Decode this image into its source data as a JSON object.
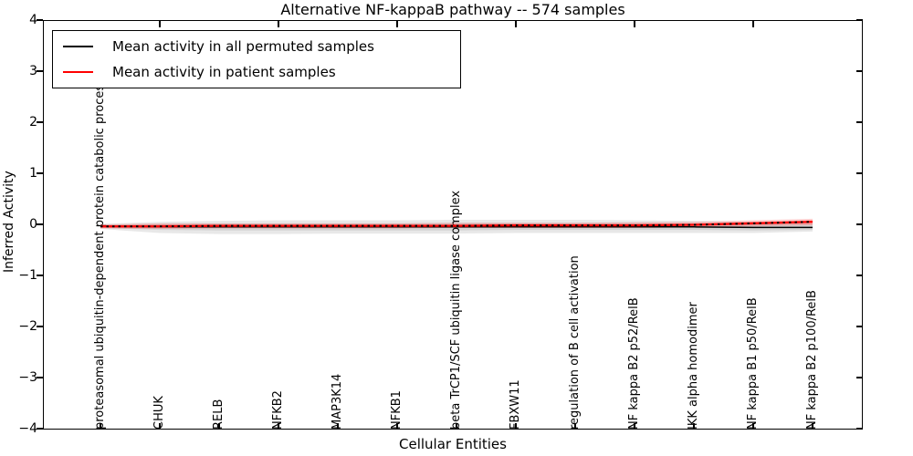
{
  "title": "Alternative NF-kappaB pathway -- 574 samples",
  "axes": {
    "ylabel": "Inferred Activity",
    "xlabel": "Cellular Entities",
    "yticks": [
      "4",
      "3",
      "2",
      "1",
      "0",
      "−1",
      "−2",
      "−3",
      "−4"
    ]
  },
  "legend": {
    "entries": [
      {
        "label": "Mean activity in all permuted samples",
        "color": "#000000"
      },
      {
        "label": "Mean activity in patient samples",
        "color": "#ff0000"
      }
    ]
  },
  "chart_data": {
    "type": "line",
    "title": "Alternative NF-kappaB pathway -- 574 samples",
    "xlabel": "Cellular Entities",
    "ylabel": "Inferred Activity",
    "ylim": [
      -4,
      4
    ],
    "grid": false,
    "legend_position": "upper left",
    "categories": [
      "proteasomal ubiquitin-dependent protein catabolic process",
      "CHUK",
      "RELB",
      "NFKB2",
      "MAP3K14",
      "NFKB1",
      "beta TrCP1/SCF ubiquitin ligase complex",
      "FBXW11",
      "regulation of B cell activation",
      "NF kappa B2 p52/RelB",
      "IKK alpha homodimer",
      "NF kappa B1 p50/RelB",
      "NF kappa B2 p100/RelB"
    ],
    "series": [
      {
        "name": "Mean activity in all permuted samples",
        "color": "#000000",
        "width": 1.5,
        "values": [
          -0.04,
          -0.05,
          -0.05,
          -0.05,
          -0.05,
          -0.05,
          -0.05,
          -0.05,
          -0.05,
          -0.05,
          -0.05,
          -0.06,
          -0.06
        ]
      },
      {
        "name": "Mean activity in patient samples",
        "color": "#ff0000",
        "width": 2.2,
        "values": [
          -0.04,
          -0.04,
          -0.03,
          -0.03,
          -0.03,
          -0.03,
          -0.03,
          -0.02,
          -0.02,
          -0.02,
          -0.01,
          0.02,
          0.05
        ]
      }
    ],
    "overlays": [
      {
        "name": "patient-line-dotted-overlay",
        "on_series": 1,
        "color": "#000000",
        "dash": "2.5 4",
        "width": 2
      }
    ],
    "bands": [
      {
        "name": "permuted-ci-outer",
        "color": "rgba(0,0,0,0.09)",
        "upper": [
          0.01,
          0.05,
          0.07,
          0.08,
          0.08,
          0.08,
          0.09,
          0.09,
          0.09,
          0.08,
          0.07,
          0.05,
          0.02
        ],
        "lower": [
          -0.09,
          -0.17,
          -0.19,
          -0.19,
          -0.18,
          -0.18,
          -0.18,
          -0.17,
          -0.17,
          -0.17,
          -0.17,
          -0.17,
          -0.14
        ]
      },
      {
        "name": "permuted-ci-inner",
        "color": "rgba(0,0,0,0.08)",
        "upper": [
          -0.01,
          0.01,
          0.02,
          0.02,
          0.02,
          0.02,
          0.03,
          0.03,
          0.03,
          0.03,
          0.02,
          0.01,
          0.0
        ],
        "lower": [
          -0.07,
          -0.11,
          -0.12,
          -0.12,
          -0.12,
          -0.12,
          -0.12,
          -0.11,
          -0.11,
          -0.11,
          -0.11,
          -0.12,
          -0.11
        ]
      },
      {
        "name": "patient-ci-outer",
        "color": "rgba(255,0,0,0.18)",
        "upper": [
          0.0,
          0.02,
          0.02,
          0.02,
          0.02,
          0.02,
          0.03,
          0.03,
          0.03,
          0.04,
          0.05,
          0.08,
          0.11
        ],
        "lower": [
          -0.08,
          -0.09,
          -0.08,
          -0.08,
          -0.08,
          -0.08,
          -0.07,
          -0.07,
          -0.07,
          -0.07,
          -0.06,
          -0.04,
          -0.02
        ]
      },
      {
        "name": "patient-ci-inner",
        "color": "rgba(255,0,0,0.25)",
        "upper": [
          -0.02,
          -0.01,
          0.0,
          0.0,
          0.0,
          0.0,
          0.0,
          0.01,
          0.01,
          0.01,
          0.02,
          0.05,
          0.08
        ],
        "lower": [
          -0.06,
          -0.06,
          -0.06,
          -0.06,
          -0.06,
          -0.06,
          -0.05,
          -0.05,
          -0.05,
          -0.04,
          -0.03,
          -0.01,
          0.01
        ]
      }
    ]
  }
}
